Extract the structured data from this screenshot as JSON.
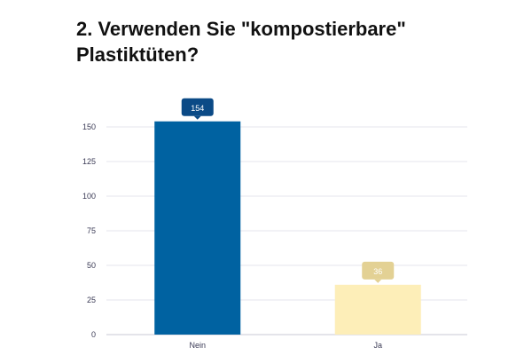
{
  "title_lines": [
    "2. Verwenden Sie \"kompostierbare\"",
    "Plastiktüten?"
  ],
  "chart_data": {
    "type": "bar",
    "title": "2. Verwenden Sie \"kompostierbare\" Plastiktüten?",
    "categories": [
      "Nein",
      "Ja"
    ],
    "values": [
      154,
      36
    ],
    "data_labels": [
      "154",
      "36"
    ],
    "ylim": [
      0,
      160
    ],
    "yticks": [
      0,
      25,
      50,
      75,
      100,
      125,
      150
    ],
    "grid": true,
    "legend": "none",
    "colors": {
      "bars": [
        "#0062a1",
        "#fdeeb8"
      ],
      "label_boxes": [
        "#0b4a86",
        "#e3d194"
      ],
      "label_text": [
        "#ffffff",
        "#ffffff"
      ],
      "grid": "#e6e6ee",
      "axis": "#c9c9d6"
    }
  }
}
